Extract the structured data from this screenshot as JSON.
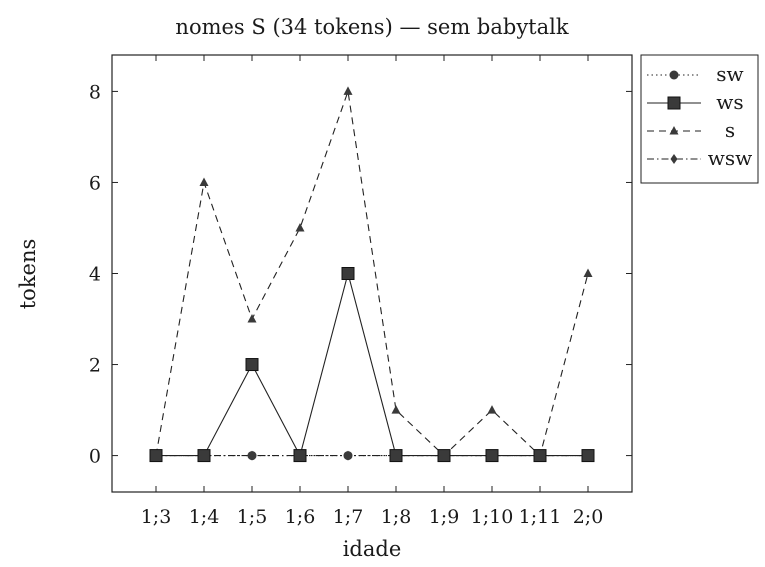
{
  "chart_data": {
    "type": "line",
    "title": "nomes S (34 tokens) — sem babytalk",
    "xlabel": "idade",
    "ylabel": "tokens",
    "categories": [
      "1;3",
      "1;4",
      "1;5",
      "1;6",
      "1;7",
      "1;8",
      "1;9",
      "1;10",
      "1;11",
      "2;0"
    ],
    "ylim": [
      -0.8,
      8.8
    ],
    "yticks": [
      0,
      2,
      4,
      6,
      8
    ],
    "grid": false,
    "legend_position": "outside-top-right",
    "series": [
      {
        "name": "sw",
        "marker": "circle",
        "line_style": "dotted",
        "values": [
          0,
          0,
          0,
          0,
          0,
          0,
          0,
          0,
          0,
          0
        ]
      },
      {
        "name": "ws",
        "marker": "square",
        "line_style": "solid",
        "values": [
          0,
          0,
          2,
          0,
          4,
          0,
          0,
          0,
          0,
          0
        ]
      },
      {
        "name": "s",
        "marker": "triangle",
        "line_style": "dashed",
        "values": [
          0,
          6,
          3,
          5,
          8,
          1,
          0,
          1,
          0,
          4
        ]
      },
      {
        "name": "wsw",
        "marker": "diamond",
        "line_style": "dashdot",
        "values": [
          0,
          0,
          0,
          0,
          0,
          0,
          0,
          0,
          0,
          0
        ]
      }
    ]
  }
}
